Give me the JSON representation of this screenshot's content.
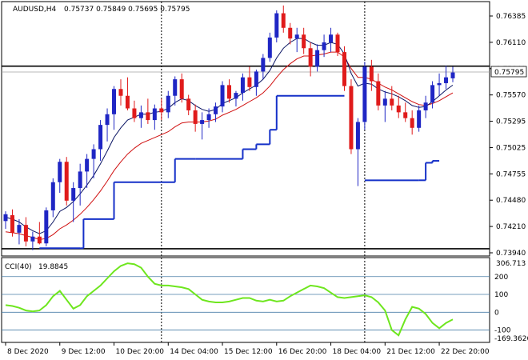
{
  "header": {
    "symbol_tf": "AUDUSD,H4",
    "ohlc": "0.75737 0.75849 0.75695 0.75795"
  },
  "colors": {
    "bull": "#1f26c4",
    "bear": "#e01b1b",
    "ma_fast": "#0a1463",
    "ma_slow": "#d01010",
    "step": "#1530c8",
    "cci": "#6ee61e",
    "level": "#4a7fa8",
    "price_tag_bg": "#e8e8f0"
  },
  "chart_data": [
    {
      "type": "candlestick",
      "title": "AUDUSD,H4",
      "ylim": [
        0.739,
        0.7652
      ],
      "y_ticks": [
        "0.76385",
        "0.76110",
        "0.75840",
        "0.75570",
        "0.75295",
        "0.75025",
        "0.74755",
        "0.74480",
        "0.74210",
        "0.73940"
      ],
      "x_labels": [
        "8 Dec 2020",
        "9 Dec 12:00",
        "10 Dec 20:00",
        "14 Dec 04:00",
        "15 Dec 12:00",
        "16 Dec 20:00",
        "18 Dec 04:00",
        "21 Dec 12:00",
        "22 Dec 20:00"
      ],
      "x_label_index": [
        0,
        8,
        16,
        24,
        32,
        40,
        48,
        56,
        64
      ],
      "current_price": "0.75795",
      "horizontal_lines": [
        0.75855,
        0.73975
      ],
      "vertical_markers": [
        23,
        53
      ],
      "candles": [
        [
          0.7426,
          0.7436,
          0.7418,
          0.7433
        ],
        [
          0.7432,
          0.7438,
          0.741,
          0.7414
        ],
        [
          0.7414,
          0.7428,
          0.7402,
          0.7422
        ],
        [
          0.7422,
          0.743,
          0.74,
          0.7405
        ],
        [
          0.7405,
          0.7415,
          0.7396,
          0.741
        ],
        [
          0.741,
          0.7425,
          0.7402,
          0.7403
        ],
        [
          0.7403,
          0.744,
          0.74,
          0.7437
        ],
        [
          0.7437,
          0.747,
          0.743,
          0.7466
        ],
        [
          0.7466,
          0.749,
          0.7455,
          0.7487
        ],
        [
          0.7487,
          0.7492,
          0.7442,
          0.7447
        ],
        [
          0.7447,
          0.7466,
          0.7425,
          0.746
        ],
        [
          0.746,
          0.7485,
          0.7442,
          0.7477
        ],
        [
          0.7477,
          0.7495,
          0.746,
          0.749
        ],
        [
          0.749,
          0.7505,
          0.747,
          0.75
        ],
        [
          0.75,
          0.753,
          0.7488,
          0.7525
        ],
        [
          0.7525,
          0.7542,
          0.7508,
          0.7536
        ],
        [
          0.7536,
          0.7565,
          0.752,
          0.7562
        ],
        [
          0.7562,
          0.7572,
          0.7545,
          0.7555
        ],
        [
          0.7555,
          0.7574,
          0.754,
          0.7542
        ],
        [
          0.7542,
          0.755,
          0.7528,
          0.7532
        ],
        [
          0.7532,
          0.7545,
          0.7522,
          0.7538
        ],
        [
          0.7538,
          0.7552,
          0.7526,
          0.753
        ],
        [
          0.753,
          0.7546,
          0.752,
          0.7542
        ],
        [
          0.7542,
          0.7552,
          0.753,
          0.7538
        ],
        [
          0.7538,
          0.756,
          0.7532,
          0.7555
        ],
        [
          0.7555,
          0.7575,
          0.7545,
          0.7572
        ],
        [
          0.7572,
          0.7578,
          0.7548,
          0.7552
        ],
        [
          0.7552,
          0.7556,
          0.7535,
          0.754
        ],
        [
          0.754,
          0.7546,
          0.7518,
          0.7526
        ],
        [
          0.7526,
          0.7538,
          0.751,
          0.753
        ],
        [
          0.753,
          0.7542,
          0.7522,
          0.7536
        ],
        [
          0.7536,
          0.7548,
          0.7528,
          0.7544
        ],
        [
          0.7544,
          0.757,
          0.7538,
          0.7566
        ],
        [
          0.7566,
          0.7572,
          0.7548,
          0.7552
        ],
        [
          0.7552,
          0.756,
          0.7544,
          0.7558
        ],
        [
          0.7558,
          0.7578,
          0.755,
          0.7574
        ],
        [
          0.7574,
          0.7585,
          0.756,
          0.7564
        ],
        [
          0.7564,
          0.7582,
          0.7555,
          0.758
        ],
        [
          0.758,
          0.7598,
          0.7572,
          0.7594
        ],
        [
          0.7594,
          0.762,
          0.759,
          0.7615
        ],
        [
          0.7615,
          0.7643,
          0.761,
          0.764
        ],
        [
          0.764,
          0.7648,
          0.762,
          0.7625
        ],
        [
          0.7625,
          0.763,
          0.7608,
          0.7614
        ],
        [
          0.7614,
          0.7625,
          0.76,
          0.7618
        ],
        [
          0.7618,
          0.7625,
          0.7598,
          0.7604
        ],
        [
          0.7604,
          0.761,
          0.7575,
          0.7585
        ],
        [
          0.7585,
          0.7608,
          0.758,
          0.7602
        ],
        [
          0.7602,
          0.7618,
          0.7595,
          0.761
        ],
        [
          0.761,
          0.7625,
          0.76,
          0.7618
        ],
        [
          0.7618,
          0.762,
          0.7596,
          0.76
        ],
        [
          0.76,
          0.7606,
          0.756,
          0.7565
        ],
        [
          0.7565,
          0.7572,
          0.7495,
          0.75
        ],
        [
          0.75,
          0.7532,
          0.7462,
          0.7528
        ],
        [
          0.7528,
          0.759,
          0.752,
          0.7585
        ],
        [
          0.7585,
          0.7592,
          0.756,
          0.757
        ],
        [
          0.757,
          0.7578,
          0.754,
          0.7545
        ],
        [
          0.7545,
          0.756,
          0.7528,
          0.7552
        ],
        [
          0.7552,
          0.7565,
          0.754,
          0.7545
        ],
        [
          0.7545,
          0.7555,
          0.7532,
          0.7538
        ],
        [
          0.7538,
          0.7548,
          0.7528,
          0.7532
        ],
        [
          0.7532,
          0.754,
          0.7515,
          0.7522
        ],
        [
          0.7522,
          0.7545,
          0.7518,
          0.754
        ],
        [
          0.754,
          0.7555,
          0.7532,
          0.7548
        ],
        [
          0.7548,
          0.757,
          0.7542,
          0.7566
        ],
        [
          0.7566,
          0.7578,
          0.7555,
          0.7568
        ],
        [
          0.7568,
          0.7586,
          0.7562,
          0.7574
        ],
        [
          0.7573,
          0.7585,
          0.7569,
          0.7579
        ]
      ],
      "ma_fast": [
        0.743,
        0.7428,
        0.7425,
        0.742,
        0.7416,
        0.7413,
        0.7416,
        0.7425,
        0.7436,
        0.744,
        0.7446,
        0.7454,
        0.7463,
        0.7473,
        0.7485,
        0.7498,
        0.7512,
        0.7522,
        0.753,
        0.7533,
        0.7536,
        0.7536,
        0.7538,
        0.7539,
        0.7542,
        0.7548,
        0.7552,
        0.755,
        0.7545,
        0.7541,
        0.7539,
        0.7541,
        0.7547,
        0.755,
        0.7553,
        0.7558,
        0.7562,
        0.7566,
        0.7572,
        0.7581,
        0.7594,
        0.7604,
        0.761,
        0.7614,
        0.7614,
        0.761,
        0.7607,
        0.7607,
        0.761,
        0.7608,
        0.7598,
        0.7578,
        0.7565,
        0.7568,
        0.7567,
        0.7562,
        0.7559,
        0.7557,
        0.7554,
        0.755,
        0.7545,
        0.7543,
        0.7544,
        0.7549,
        0.7555,
        0.7561,
        0.7566
      ],
      "ma_slow": [
        0.7415,
        0.7414,
        0.7413,
        0.7411,
        0.7409,
        0.7407,
        0.7408,
        0.7412,
        0.7418,
        0.7422,
        0.7427,
        0.7433,
        0.744,
        0.7448,
        0.7457,
        0.7467,
        0.7478,
        0.7487,
        0.7495,
        0.7501,
        0.7506,
        0.7509,
        0.7512,
        0.7515,
        0.7518,
        0.7523,
        0.7527,
        0.7528,
        0.7528,
        0.7528,
        0.7529,
        0.7531,
        0.7535,
        0.7538,
        0.7541,
        0.7545,
        0.7549,
        0.7553,
        0.7558,
        0.7565,
        0.7574,
        0.7582,
        0.7588,
        0.7593,
        0.7596,
        0.7596,
        0.7597,
        0.7598,
        0.76,
        0.76,
        0.7595,
        0.7583,
        0.7574,
        0.7574,
        0.7572,
        0.7568,
        0.7564,
        0.7561,
        0.7557,
        0.7553,
        0.7549,
        0.7546,
        0.7545,
        0.7547,
        0.755,
        0.7554,
        0.7558
      ],
      "step_line": [
        {
          "from": 5,
          "to": 11,
          "value": 0.7398
        },
        {
          "from": 11,
          "to": 11.5,
          "value": 0.7398
        },
        {
          "from": 11.5,
          "to": 16,
          "value": 0.7428
        },
        {
          "from": 16,
          "to": 23,
          "value": 0.7466
        },
        {
          "from": 23,
          "to": 25,
          "value": 0.7466
        },
        {
          "from": 25,
          "to": 28,
          "value": 0.749
        },
        {
          "from": 28,
          "to": 33,
          "value": 0.749
        },
        {
          "from": 33,
          "to": 35,
          "value": 0.749
        },
        {
          "from": 35,
          "to": 37,
          "value": 0.75
        },
        {
          "from": 37,
          "to": 39,
          "value": 0.7505
        },
        {
          "from": 39,
          "to": 40,
          "value": 0.752
        },
        {
          "from": 40,
          "to": 50,
          "value": 0.7555
        },
        {
          "from": 53,
          "to": 61,
          "value": 0.7468
        },
        {
          "from": 61,
          "to": 62,
          "value": 0.7468
        },
        {
          "from": 62,
          "to": 63,
          "value": 0.7486
        },
        {
          "from": 63,
          "to": 64,
          "value": 0.7488
        }
      ]
    },
    {
      "type": "line",
      "title": "CCI(40)",
      "current_value": "19.8845",
      "ylim": [
        -169.3626,
        306.713
      ],
      "scale_top_label": "306.713",
      "scale_bottom_label": "-169.3626",
      "levels": [
        200,
        100,
        0,
        -100
      ],
      "level_labels": [
        "200",
        "100",
        "0",
        "-100"
      ],
      "series": [
        {
          "values": [
            40,
            35,
            25,
            10,
            5,
            10,
            40,
            90,
            120,
            70,
            20,
            40,
            90,
            120,
            150,
            190,
            230,
            260,
            275,
            270,
            250,
            200,
            160,
            150,
            150,
            145,
            140,
            130,
            100,
            70,
            60,
            55,
            55,
            60,
            70,
            80,
            80,
            65,
            60,
            70,
            60,
            65,
            90,
            110,
            130,
            150,
            145,
            135,
            110,
            85,
            80,
            85,
            90,
            95,
            85,
            55,
            10,
            -100,
            -130,
            -40,
            30,
            20,
            -10,
            -60,
            -90,
            -60,
            -40,
            -20,
            10,
            20,
            20
          ]
        }
      ]
    }
  ]
}
